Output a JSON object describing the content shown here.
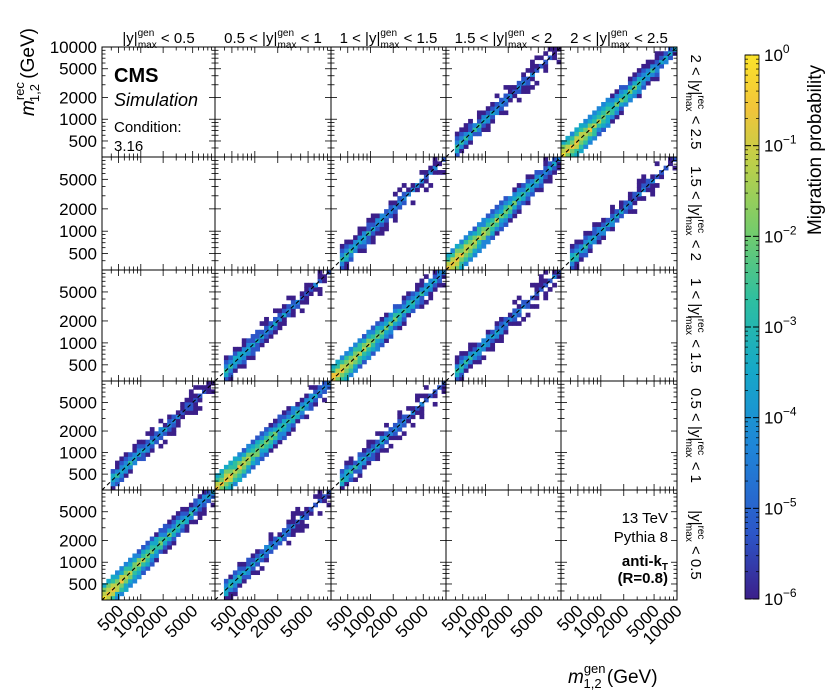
{
  "chart_data": {
    "type": "heatmap",
    "layout": "5x5 grid of panels",
    "column_headers": [
      "|y|max gen < 0.5",
      "0.5 < |y|max gen < 1",
      "1 < |y|max gen < 1.5",
      "1.5 < |y|max gen < 2",
      "2 < |y|max gen < 2.5"
    ],
    "column_headers_display": [
      {
        "pre": "|y|",
        "sup": "gen",
        "sub": "max",
        "post": " < 0.5"
      },
      {
        "pre": "0.5 < |y|",
        "sup": "gen",
        "sub": "max",
        "post": " < 1"
      },
      {
        "pre": "1 < |y|",
        "sup": "gen",
        "sub": "max",
        "post": " < 1.5"
      },
      {
        "pre": "1.5 < |y|",
        "sup": "gen",
        "sub": "max",
        "post": " < 2"
      },
      {
        "pre": "2 < |y|",
        "sup": "gen",
        "sub": "max",
        "post": " < 2.5"
      }
    ],
    "row_headers": [
      "2 < |y|max rec < 2.5",
      "1.5 < |y|max rec < 2",
      "1 < |y|max rec < 1.5",
      "0.5 < |y|max rec < 1",
      "|y|max rec < 0.5"
    ],
    "row_headers_display": [
      {
        "pre": "2 < |y|",
        "sup": "rec",
        "sub": "max",
        "post": " < 2.5"
      },
      {
        "pre": "1.5 < |y|",
        "sup": "rec",
        "sub": "max",
        "post": " < 2"
      },
      {
        "pre": "1 < |y|",
        "sup": "rec",
        "sub": "max",
        "post": " < 1.5"
      },
      {
        "pre": "0.5 < |y|",
        "sup": "rec",
        "sub": "max",
        "post": " < 1"
      },
      {
        "pre": "|y|",
        "sup": "rec",
        "sub": "max",
        "post": " < 0.5"
      }
    ],
    "xlabel": {
      "main": "m",
      "sup": "gen",
      "sub": "1,2",
      "unit": " (GeV)"
    },
    "ylabel": {
      "main": "m",
      "sup": "rec",
      "sub": "1,2",
      "unit": " (GeV)"
    },
    "x_scale": "log",
    "y_scale": "log",
    "xlim": [
      300,
      10000
    ],
    "ylim": [
      300,
      10000
    ],
    "x_tick_labels": [
      "500",
      "1000",
      "2000",
      "5000"
    ],
    "x_tick_labels_last_column": [
      "500",
      "1000",
      "2000",
      "5000",
      "10000"
    ],
    "y_tick_labels_top_row": [
      "500",
      "1000",
      "2000",
      "5000",
      "10000"
    ],
    "y_tick_labels_other_rows": [
      "500",
      "1000",
      "2000",
      "5000"
    ],
    "colorbar": {
      "label": "Migration probability",
      "scale": "log",
      "range": [
        1e-06,
        1
      ],
      "tick_labels": [
        {
          "base": "10",
          "exp": "0"
        },
        {
          "base": "10",
          "exp": "−1"
        },
        {
          "base": "10",
          "exp": "−2"
        },
        {
          "base": "10",
          "exp": "−3"
        },
        {
          "base": "10",
          "exp": "−4"
        },
        {
          "base": "10",
          "exp": "−5"
        },
        {
          "base": "10",
          "exp": "−6"
        }
      ],
      "colors": [
        "#3b1f8a",
        "#2c56c8",
        "#1f86d8",
        "#16a8c8",
        "#2ebfa0",
        "#77cc6a",
        "#bcd04a",
        "#f1c43a",
        "#fbe32a"
      ]
    },
    "diagonal_reference_line": "dashed black, rec = gen",
    "panels_with_migration_data": [
      {
        "row": 0,
        "col": 3,
        "peak": "low"
      },
      {
        "row": 0,
        "col": 4,
        "peak": "high"
      },
      {
        "row": 1,
        "col": 2,
        "peak": "low"
      },
      {
        "row": 1,
        "col": 3,
        "peak": "high"
      },
      {
        "row": 1,
        "col": 4,
        "peak": "low"
      },
      {
        "row": 2,
        "col": 1,
        "peak": "low"
      },
      {
        "row": 2,
        "col": 2,
        "peak": "high"
      },
      {
        "row": 2,
        "col": 3,
        "peak": "low"
      },
      {
        "row": 3,
        "col": 0,
        "peak": "low"
      },
      {
        "row": 3,
        "col": 1,
        "peak": "high"
      },
      {
        "row": 3,
        "col": 2,
        "peak": "low"
      },
      {
        "row": 4,
        "col": 0,
        "peak": "high"
      },
      {
        "row": 4,
        "col": 1,
        "peak": "low"
      }
    ]
  },
  "labels": {
    "cms": "CMS",
    "simulation": "Simulation",
    "condition_label": "Condition:",
    "condition_value": "3.16",
    "energy": "13 TeV",
    "generator": "Pythia 8",
    "algo_main": "anti-k",
    "algo_sub": "T",
    "algo_radius": "(R=0.8)"
  }
}
